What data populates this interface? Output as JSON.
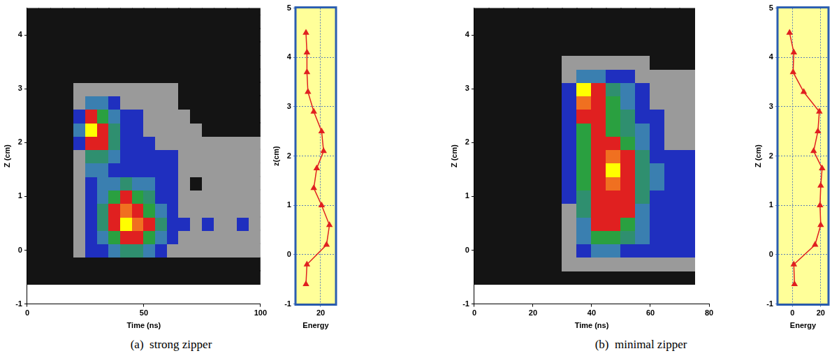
{
  "captions": [
    "(a)  strong zipper",
    "(b)  minimal zipper"
  ],
  "chart_data": [
    {
      "type": "heatmap",
      "xlabel": "Time (ns)",
      "ylabel": "Z (cm)",
      "xlim": [
        0,
        100
      ],
      "xticks": [
        0,
        50,
        100
      ],
      "ylim": [
        -1,
        4.5
      ],
      "yticks": [
        -1,
        0,
        1,
        2,
        3,
        4
      ],
      "grid": false,
      "colors": [
        "#141414",
        "#9a9a9a",
        "#1f2fbf",
        "#3a7fb0",
        "#2f8f6f",
        "#2aa040",
        "#e02020",
        "#f07020",
        "#ffff00"
      ],
      "x": [
        2.5,
        7.5,
        12.5,
        17.5,
        22.5,
        27.5,
        32.5,
        37.5,
        42.5,
        47.5,
        52.5,
        57.5,
        62.5,
        67.5,
        72.5,
        77.5,
        82.5,
        87.5,
        92.5,
        97.5
      ],
      "y": [
        -0.5,
        -0.25,
        0,
        0.25,
        0.5,
        0.75,
        1,
        1.25,
        1.5,
        1.75,
        2,
        2.25,
        2.5,
        2.75,
        3,
        3.25,
        3.5,
        3.75,
        4,
        4.25,
        4.5
      ],
      "cells": [
        [
          0,
          0,
          0,
          0,
          0,
          0,
          0,
          0,
          0,
          0,
          0,
          0,
          0,
          0,
          0,
          0,
          0,
          0,
          0,
          0
        ],
        [
          0,
          0,
          0,
          0,
          0,
          0,
          0,
          0,
          0,
          0,
          0,
          0,
          0,
          0,
          0,
          0,
          0,
          0,
          0,
          0
        ],
        [
          0,
          0,
          0,
          0,
          1,
          2,
          2,
          3,
          4,
          4,
          3,
          2,
          1,
          1,
          1,
          1,
          1,
          1,
          1,
          1
        ],
        [
          0,
          0,
          0,
          0,
          1,
          2,
          3,
          5,
          6,
          6,
          5,
          3,
          2,
          1,
          1,
          1,
          1,
          1,
          1,
          1
        ],
        [
          0,
          0,
          0,
          0,
          1,
          2,
          4,
          6,
          8,
          7,
          6,
          4,
          2,
          2,
          1,
          2,
          1,
          1,
          2,
          1
        ],
        [
          0,
          0,
          0,
          0,
          1,
          2,
          4,
          6,
          7,
          6,
          5,
          3,
          2,
          1,
          1,
          1,
          1,
          1,
          1,
          1
        ],
        [
          0,
          0,
          0,
          0,
          1,
          2,
          3,
          5,
          6,
          5,
          4,
          2,
          2,
          1,
          1,
          1,
          1,
          1,
          1,
          1
        ],
        [
          0,
          0,
          0,
          0,
          1,
          2,
          3,
          3,
          4,
          3,
          3,
          2,
          2,
          1,
          0,
          1,
          1,
          1,
          1,
          1
        ],
        [
          0,
          0,
          0,
          0,
          1,
          3,
          3,
          2,
          2,
          2,
          2,
          2,
          2,
          1,
          1,
          1,
          1,
          1,
          1,
          1
        ],
        [
          0,
          0,
          0,
          0,
          1,
          4,
          4,
          3,
          2,
          2,
          2,
          2,
          2,
          1,
          1,
          1,
          1,
          1,
          1,
          1
        ],
        [
          0,
          0,
          0,
          0,
          2,
          6,
          6,
          4,
          2,
          2,
          2,
          1,
          1,
          1,
          1,
          1,
          1,
          1,
          1,
          1
        ],
        [
          0,
          0,
          0,
          0,
          3,
          8,
          6,
          4,
          2,
          2,
          1,
          1,
          1,
          1,
          1,
          0,
          0,
          0,
          0,
          0
        ],
        [
          0,
          0,
          0,
          0,
          2,
          6,
          5,
          3,
          2,
          2,
          1,
          1,
          1,
          1,
          0,
          0,
          0,
          0,
          0,
          0
        ],
        [
          0,
          0,
          0,
          0,
          1,
          3,
          3,
          2,
          1,
          1,
          1,
          1,
          1,
          0,
          0,
          0,
          0,
          0,
          0,
          0
        ],
        [
          0,
          0,
          0,
          0,
          1,
          1,
          1,
          1,
          1,
          1,
          1,
          1,
          1,
          0,
          0,
          0,
          0,
          0,
          0,
          0
        ],
        [
          0,
          0,
          0,
          0,
          0,
          0,
          0,
          0,
          0,
          0,
          0,
          0,
          0,
          0,
          0,
          0,
          0,
          0,
          0,
          0
        ],
        [
          0,
          0,
          0,
          0,
          0,
          0,
          0,
          0,
          0,
          0,
          0,
          0,
          0,
          0,
          0,
          0,
          0,
          0,
          0,
          0
        ],
        [
          0,
          0,
          0,
          0,
          0,
          0,
          0,
          0,
          0,
          0,
          0,
          0,
          0,
          0,
          0,
          0,
          0,
          0,
          0,
          0
        ],
        [
          0,
          0,
          0,
          0,
          0,
          0,
          0,
          0,
          0,
          0,
          0,
          0,
          0,
          0,
          0,
          0,
          0,
          0,
          0,
          0
        ],
        [
          0,
          0,
          0,
          0,
          0,
          0,
          0,
          0,
          0,
          0,
          0,
          0,
          0,
          0,
          0,
          0,
          0,
          0,
          0,
          0
        ],
        [
          0,
          0,
          0,
          0,
          0,
          0,
          0,
          0,
          0,
          0,
          0,
          0,
          0,
          0,
          0,
          0,
          0,
          0,
          0,
          0
        ]
      ]
    },
    {
      "type": "line",
      "xlabel": "Energy",
      "ylabel": "z(cm)",
      "xlim": [
        -5,
        35
      ],
      "xticks": [
        20
      ],
      "ylim": [
        -1,
        5
      ],
      "yticks": [
        -1,
        0,
        1,
        2,
        3,
        4,
        5
      ],
      "grid": true,
      "color": "#e02020",
      "marker": "triangle",
      "x": [
        5,
        6,
        6,
        7,
        13,
        21,
        23,
        16,
        13,
        21,
        29,
        26,
        6,
        5
      ],
      "y": [
        4.5,
        4.1,
        3.7,
        3.3,
        2.9,
        2.5,
        2.1,
        1.75,
        1.35,
        1.0,
        0.6,
        0.2,
        -0.2,
        -0.6
      ]
    },
    {
      "type": "heatmap",
      "xlabel": "Time (ns)",
      "ylabel": "Z (cm)",
      "xlim": [
        0,
        80
      ],
      "xticks": [
        0,
        20,
        40,
        60,
        80
      ],
      "ylim": [
        -1,
        4.5
      ],
      "yticks": [
        -1,
        0,
        1,
        2,
        3,
        4
      ],
      "grid": false,
      "colors": [
        "#141414",
        "#9a9a9a",
        "#1f2fbf",
        "#3a7fb0",
        "#2f8f6f",
        "#2aa040",
        "#e02020",
        "#f07020",
        "#ffff00"
      ],
      "x": [
        2.5,
        7.5,
        12.5,
        17.5,
        22.5,
        27.5,
        32.5,
        37.5,
        42.5,
        47.5,
        52.5,
        57.5,
        62.5,
        67.5,
        72.5
      ],
      "y": [
        -0.5,
        -0.25,
        0,
        0.25,
        0.5,
        0.75,
        1,
        1.25,
        1.5,
        1.75,
        2,
        2.25,
        2.5,
        2.75,
        3,
        3.25,
        3.5,
        3.75,
        4,
        4.25,
        4.5
      ],
      "cells": [
        [
          0,
          0,
          0,
          0,
          0,
          0,
          0,
          0,
          0,
          0,
          0,
          0,
          0,
          0,
          0
        ],
        [
          0,
          0,
          0,
          0,
          0,
          0,
          1,
          1,
          1,
          1,
          1,
          1,
          1,
          1,
          1
        ],
        [
          0,
          0,
          0,
          0,
          0,
          0,
          1,
          2,
          3,
          3,
          2,
          2,
          2,
          2,
          2
        ],
        [
          0,
          0,
          0,
          0,
          0,
          0,
          1,
          3,
          5,
          5,
          4,
          3,
          2,
          2,
          2
        ],
        [
          0,
          0,
          0,
          0,
          0,
          0,
          1,
          3,
          6,
          6,
          5,
          3,
          2,
          2,
          2
        ],
        [
          0,
          0,
          0,
          0,
          0,
          0,
          1,
          4,
          6,
          6,
          6,
          3,
          2,
          2,
          2
        ],
        [
          0,
          0,
          0,
          0,
          0,
          0,
          2,
          4,
          6,
          6,
          6,
          4,
          2,
          2,
          2
        ],
        [
          0,
          0,
          0,
          0,
          0,
          0,
          2,
          5,
          6,
          7,
          6,
          4,
          3,
          2,
          2
        ],
        [
          0,
          0,
          0,
          0,
          0,
          0,
          2,
          5,
          6,
          8,
          6,
          4,
          3,
          2,
          2
        ],
        [
          0,
          0,
          0,
          0,
          0,
          0,
          2,
          5,
          6,
          7,
          6,
          4,
          2,
          2,
          2
        ],
        [
          0,
          0,
          0,
          0,
          0,
          0,
          2,
          5,
          6,
          6,
          5,
          3,
          2,
          1,
          1
        ],
        [
          0,
          0,
          0,
          0,
          0,
          0,
          2,
          5,
          6,
          5,
          4,
          3,
          2,
          1,
          1
        ],
        [
          0,
          0,
          0,
          0,
          0,
          0,
          2,
          6,
          6,
          5,
          4,
          2,
          2,
          1,
          1
        ],
        [
          0,
          0,
          0,
          0,
          0,
          0,
          2,
          7,
          6,
          5,
          3,
          2,
          1,
          1,
          1
        ],
        [
          0,
          0,
          0,
          0,
          0,
          0,
          2,
          8,
          6,
          4,
          3,
          2,
          1,
          1,
          1
        ],
        [
          0,
          0,
          0,
          0,
          0,
          0,
          1,
          3,
          3,
          2,
          2,
          1,
          1,
          1,
          1
        ],
        [
          0,
          0,
          0,
          0,
          0,
          0,
          1,
          1,
          1,
          1,
          1,
          1,
          0,
          0,
          0
        ],
        [
          0,
          0,
          0,
          0,
          0,
          0,
          0,
          0,
          0,
          0,
          0,
          0,
          0,
          0,
          0
        ],
        [
          0,
          0,
          0,
          0,
          0,
          0,
          0,
          0,
          0,
          0,
          0,
          0,
          0,
          0,
          0
        ],
        [
          0,
          0,
          0,
          0,
          0,
          0,
          0,
          0,
          0,
          0,
          0,
          0,
          0,
          0,
          0
        ],
        [
          0,
          0,
          0,
          0,
          0,
          0,
          0,
          0,
          0,
          0,
          0,
          0,
          0,
          0,
          0
        ]
      ]
    },
    {
      "type": "line",
      "xlabel": "Energy",
      "ylabel": "Z (cm)",
      "xlim": [
        -10,
        25
      ],
      "xticks": [
        0,
        20
      ],
      "ylim": [
        -1,
        5
      ],
      "yticks": [
        -1,
        0,
        1,
        2,
        3,
        4,
        5
      ],
      "grid": true,
      "color": "#e02020",
      "marker": "triangle",
      "x": [
        -2,
        1,
        0.5,
        8,
        19,
        18,
        15,
        21,
        20,
        19.5,
        20,
        16,
        1,
        1.5
      ],
      "y": [
        4.5,
        4.1,
        3.7,
        3.3,
        2.9,
        2.5,
        2.1,
        1.75,
        1.4,
        1.0,
        0.6,
        0.2,
        -0.2,
        -0.6
      ]
    }
  ]
}
